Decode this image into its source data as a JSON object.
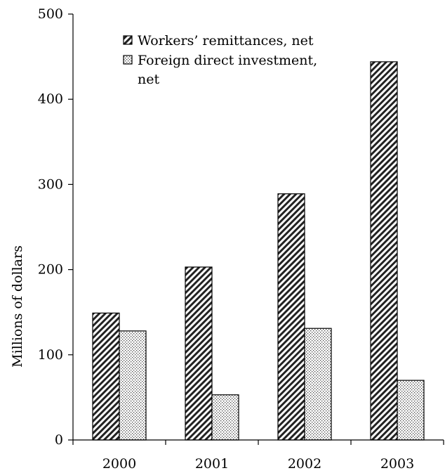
{
  "chart_data": {
    "type": "bar",
    "title": "",
    "xlabel": "",
    "ylabel": "Millions of dollars",
    "categories": [
      "2000",
      "2001",
      "2002",
      "2003"
    ],
    "series": [
      {
        "name": "Workers’ remittances, net",
        "values": [
          149,
          203,
          289,
          444
        ],
        "pattern": "diagonal-hatch",
        "color": "#333333"
      },
      {
        "name": "Foreign direct investment, net",
        "values": [
          128,
          53,
          131,
          70
        ],
        "pattern": "dots",
        "color": "#555555"
      }
    ],
    "ylim": [
      0,
      500
    ],
    "yticks": [
      0,
      100,
      200,
      300,
      400,
      500
    ],
    "grid": false,
    "legend_position": "top-left",
    "legend_lines": [
      [
        "Workers’ remittances, net"
      ],
      [
        "Foreign direct investment,",
        "net"
      ]
    ]
  }
}
